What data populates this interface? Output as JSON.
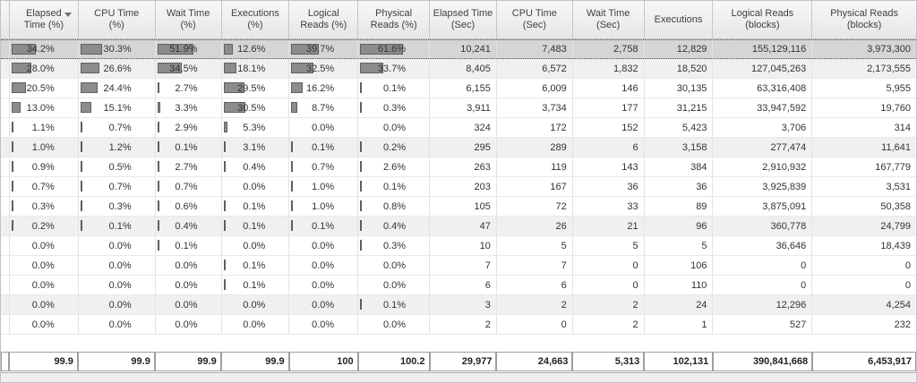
{
  "grid": {
    "columns": [
      {
        "id": "elapsed-pct",
        "label": "Elapsed\nTime (%)",
        "type": "percent",
        "sorted": "desc"
      },
      {
        "id": "cpu-pct",
        "label": "CPU Time\n(%)",
        "type": "percent"
      },
      {
        "id": "wait-pct",
        "label": "Wait Time\n(%)",
        "type": "percent"
      },
      {
        "id": "exec-pct",
        "label": "Executions\n(%)",
        "type": "percent"
      },
      {
        "id": "logical-pct",
        "label": "Logical\nReads (%)",
        "type": "percent"
      },
      {
        "id": "physical-pct",
        "label": "Physical\nReads (%)",
        "type": "percent"
      },
      {
        "id": "elapsed-sec",
        "label": "Elapsed Time\n(Sec)",
        "type": "number"
      },
      {
        "id": "cpu-sec",
        "label": "CPU Time\n(Sec)",
        "type": "number"
      },
      {
        "id": "wait-sec",
        "label": "Wait Time\n(Sec)",
        "type": "number"
      },
      {
        "id": "executions",
        "label": "Executions",
        "type": "number"
      },
      {
        "id": "logical-reads",
        "label": "Logical Reads\n(blocks)",
        "type": "number"
      },
      {
        "id": "physical-reads",
        "label": "Physical Reads\n(blocks)",
        "type": "number"
      }
    ],
    "rows": [
      {
        "selected": true,
        "shaded": false,
        "percents": [
          34.2,
          30.3,
          51.9,
          12.6,
          39.7,
          61.6
        ],
        "numbers": [
          "10,241",
          "7,483",
          "2,758",
          "12,829",
          "155,129,116",
          "3,973,300"
        ]
      },
      {
        "selected": false,
        "shaded": true,
        "percents": [
          28.0,
          26.6,
          34.5,
          18.1,
          32.5,
          33.7
        ],
        "numbers": [
          "8,405",
          "6,572",
          "1,832",
          "18,520",
          "127,045,263",
          "2,173,555"
        ]
      },
      {
        "selected": false,
        "shaded": false,
        "percents": [
          20.5,
          24.4,
          2.7,
          29.5,
          16.2,
          0.1
        ],
        "numbers": [
          "6,155",
          "6,009",
          "146",
          "30,135",
          "63,316,408",
          "5,955"
        ]
      },
      {
        "selected": false,
        "shaded": false,
        "percents": [
          13.0,
          15.1,
          3.3,
          30.5,
          8.7,
          0.3
        ],
        "numbers": [
          "3,911",
          "3,734",
          "177",
          "31,215",
          "33,947,592",
          "19,760"
        ]
      },
      {
        "selected": false,
        "shaded": false,
        "percents": [
          1.1,
          0.7,
          2.9,
          5.3,
          0.0,
          0.0
        ],
        "numbers": [
          "324",
          "172",
          "152",
          "5,423",
          "3,706",
          "314"
        ]
      },
      {
        "selected": false,
        "shaded": true,
        "percents": [
          1.0,
          1.2,
          0.1,
          3.1,
          0.1,
          0.2
        ],
        "numbers": [
          "295",
          "289",
          "6",
          "3,158",
          "277,474",
          "11,641"
        ]
      },
      {
        "selected": false,
        "shaded": false,
        "percents": [
          0.9,
          0.5,
          2.7,
          0.4,
          0.7,
          2.6
        ],
        "numbers": [
          "263",
          "119",
          "143",
          "384",
          "2,910,932",
          "167,779"
        ]
      },
      {
        "selected": false,
        "shaded": false,
        "percents": [
          0.7,
          0.7,
          0.7,
          0.0,
          1.0,
          0.1
        ],
        "numbers": [
          "203",
          "167",
          "36",
          "36",
          "3,925,839",
          "3,531"
        ]
      },
      {
        "selected": false,
        "shaded": false,
        "percents": [
          0.3,
          0.3,
          0.6,
          0.1,
          1.0,
          0.8
        ],
        "numbers": [
          "105",
          "72",
          "33",
          "89",
          "3,875,091",
          "50,358"
        ]
      },
      {
        "selected": false,
        "shaded": true,
        "percents": [
          0.2,
          0.1,
          0.4,
          0.1,
          0.1,
          0.4
        ],
        "numbers": [
          "47",
          "26",
          "21",
          "96",
          "360,778",
          "24,799"
        ]
      },
      {
        "selected": false,
        "shaded": false,
        "percents": [
          0.0,
          0.0,
          0.1,
          0.0,
          0.0,
          0.3
        ],
        "numbers": [
          "10",
          "5",
          "5",
          "5",
          "36,646",
          "18,439"
        ]
      },
      {
        "selected": false,
        "shaded": false,
        "percents": [
          0.0,
          0.0,
          0.0,
          0.1,
          0.0,
          0.0
        ],
        "numbers": [
          "7",
          "7",
          "0",
          "106",
          "0",
          "0"
        ]
      },
      {
        "selected": false,
        "shaded": false,
        "percents": [
          0.0,
          0.0,
          0.0,
          0.1,
          0.0,
          0.0
        ],
        "numbers": [
          "6",
          "6",
          "0",
          "110",
          "0",
          "0"
        ]
      },
      {
        "selected": false,
        "shaded": true,
        "percents": [
          0.0,
          0.0,
          0.0,
          0.0,
          0.0,
          0.1
        ],
        "numbers": [
          "3",
          "2",
          "2",
          "24",
          "12,296",
          "4,254"
        ]
      },
      {
        "selected": false,
        "shaded": false,
        "percents": [
          0.0,
          0.0,
          0.0,
          0.0,
          0.0,
          0.0
        ],
        "numbers": [
          "2",
          "0",
          "2",
          "1",
          "527",
          "232"
        ]
      }
    ],
    "totals": [
      "99.9",
      "99.9",
      "99.9",
      "99.9",
      "100",
      "100.2",
      "29,977",
      "24,663",
      "5,313",
      "102,131",
      "390,841,668",
      "6,453,917"
    ]
  },
  "colors": {
    "bar_fill": "#8c8c8c",
    "bar_border": "#5f5f5f",
    "selected_row_bg": "#d5d5d5",
    "shaded_row_bg": "#f0f0f0",
    "header_border": "#c6c6c6"
  }
}
